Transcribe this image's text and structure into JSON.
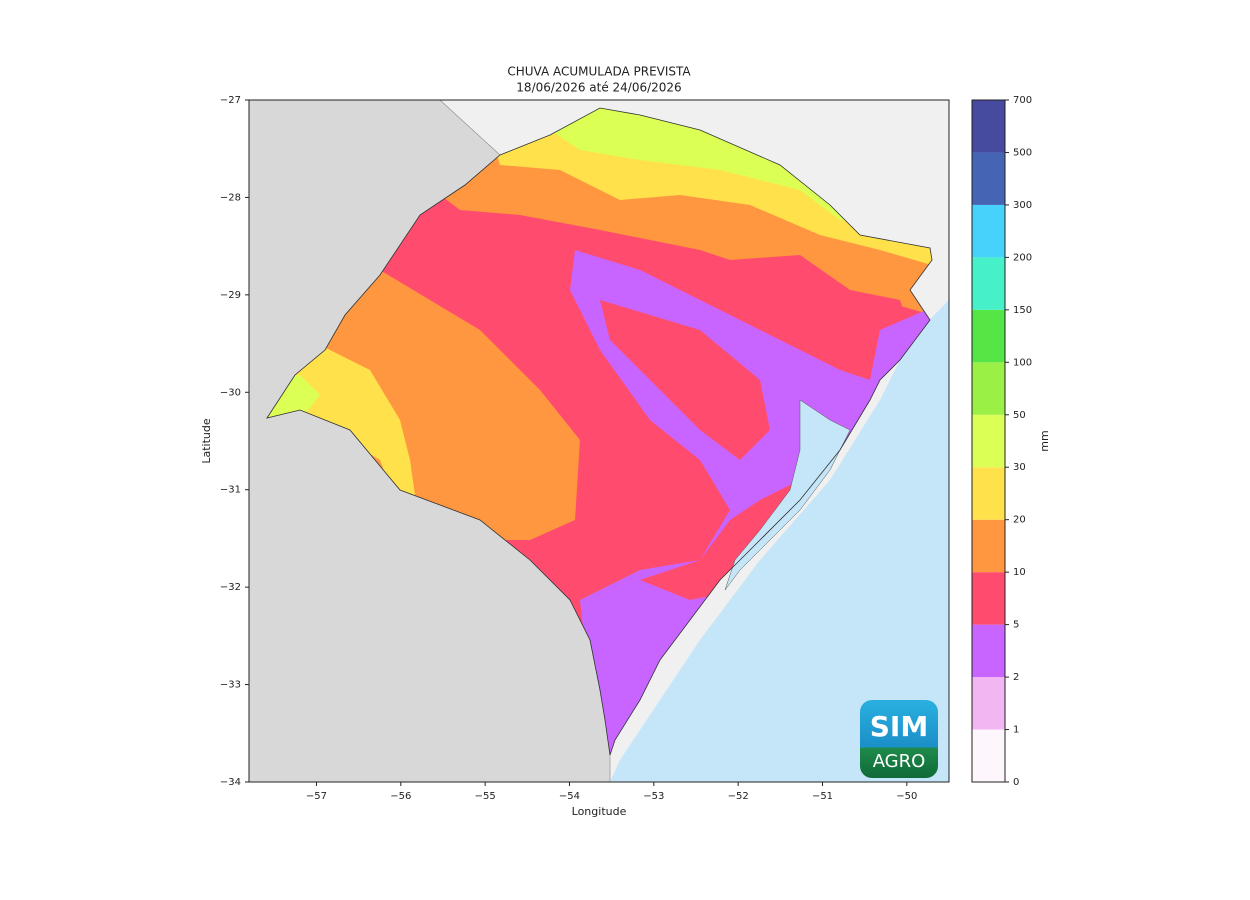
{
  "map": {
    "title": "CHUVA ACUMULADA PREVISTA",
    "subtitle": "18/06/2026 até 24/06/2026",
    "xlabel": "Longitude",
    "ylabel": "Latitude",
    "xlim": [
      -57.8,
      -49.5
    ],
    "ylim": [
      -34,
      -27
    ],
    "xticks": [
      {
        "value": -57,
        "label": "−57"
      },
      {
        "value": -56,
        "label": "−56"
      },
      {
        "value": -55,
        "label": "−55"
      },
      {
        "value": -54,
        "label": "−54"
      },
      {
        "value": -53,
        "label": "−53"
      },
      {
        "value": -52,
        "label": "−52"
      },
      {
        "value": -51,
        "label": "−51"
      },
      {
        "value": -50,
        "label": "−50"
      }
    ],
    "yticks": [
      {
        "value": -27,
        "label": "−27"
      },
      {
        "value": -28,
        "label": "−28"
      },
      {
        "value": -29,
        "label": "−29"
      },
      {
        "value": -30,
        "label": "−30"
      },
      {
        "value": -31,
        "label": "−31"
      },
      {
        "value": -32,
        "label": "−32"
      },
      {
        "value": -33,
        "label": "−33"
      },
      {
        "value": -34,
        "label": "−34"
      }
    ],
    "colorbar": {
      "label": "mm",
      "bounds": [
        0,
        1,
        2,
        5,
        10,
        20,
        30,
        50,
        100,
        150,
        200,
        300,
        500,
        700
      ],
      "colors": [
        "#fdf7fd",
        "#f2b6f2",
        "#c864ff",
        "#ff4c6e",
        "#ff9640",
        "#ffe14b",
        "#dcff55",
        "#9bf046",
        "#55e646",
        "#46f0c8",
        "#46d2fa",
        "#4664b4",
        "#464ba0"
      ]
    },
    "logo": {
      "top": "SIM",
      "bottom": "AGRO"
    }
  }
}
